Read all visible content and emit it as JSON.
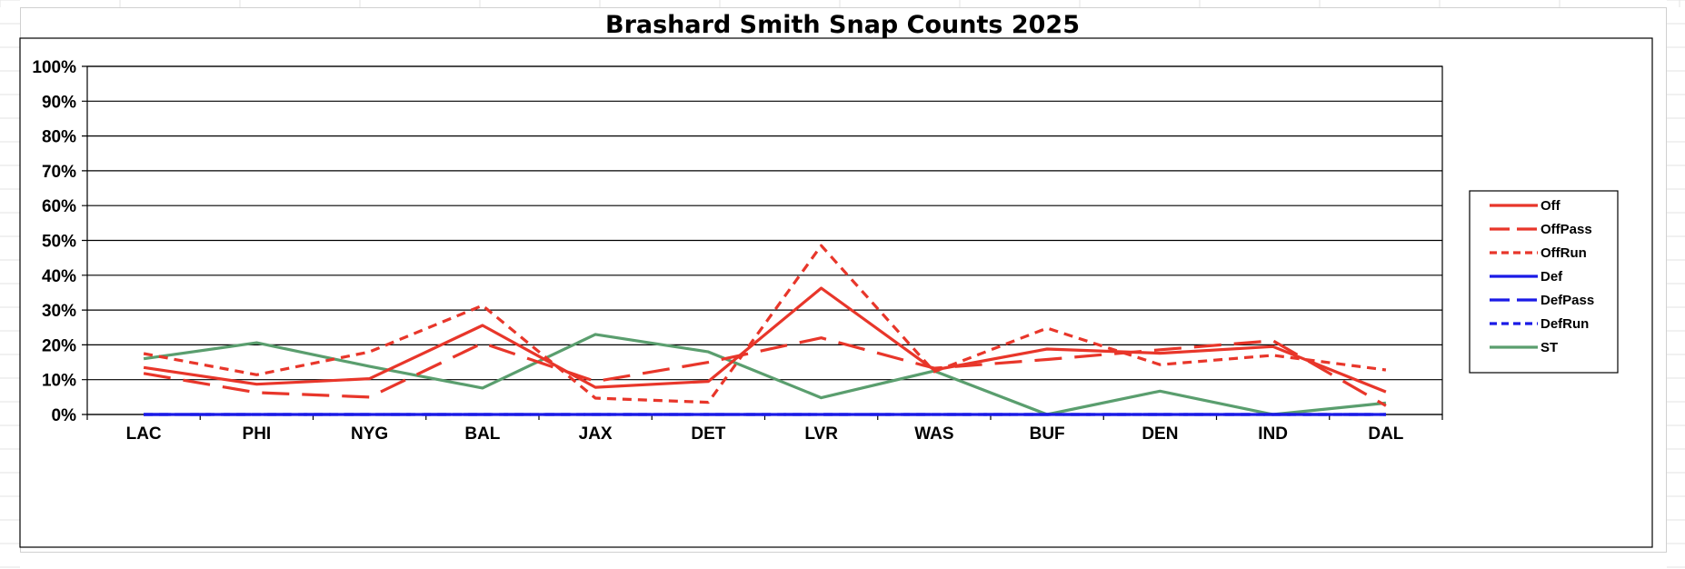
{
  "chart_data": {
    "type": "line",
    "title": "Brashard Smith Snap Counts 2025",
    "xlabel": "",
    "ylabel": "",
    "ylim": [
      0,
      100
    ],
    "y_tick_labels": [
      "0%",
      "10%",
      "20%",
      "30%",
      "40%",
      "50%",
      "60%",
      "70%",
      "80%",
      "90%",
      "100%"
    ],
    "categories": [
      "LAC",
      "PHI",
      "NYG",
      "BAL",
      "JAX",
      "DET",
      "LVR",
      "WAS",
      "BUF",
      "DEN",
      "IND",
      "DAL"
    ],
    "grid": true,
    "legend_position": "right",
    "series": [
      {
        "name": "Off",
        "color": "#e8362a",
        "dash": "solid",
        "values": [
          13.5,
          8.7,
          10.3,
          25.6,
          7.8,
          9.5,
          36.3,
          12.8,
          18.8,
          17.6,
          19.5,
          6.5
        ]
      },
      {
        "name": "OffPass",
        "color": "#e8362a",
        "dash": "long",
        "values": [
          11.8,
          6.3,
          5.0,
          20.5,
          9.5,
          15.0,
          22.0,
          13.3,
          15.8,
          18.6,
          21.2,
          2.5
        ]
      },
      {
        "name": "OffRun",
        "color": "#e8362a",
        "dash": "short",
        "values": [
          17.5,
          11.4,
          18.0,
          31.3,
          4.7,
          3.5,
          48.5,
          12.3,
          24.8,
          14.3,
          17.0,
          12.8
        ]
      },
      {
        "name": "Def",
        "color": "#1a1ae6",
        "dash": "solid",
        "values": [
          0,
          0,
          0,
          0,
          0,
          0,
          0,
          0,
          0,
          0,
          0,
          0
        ]
      },
      {
        "name": "DefPass",
        "color": "#1a1ae6",
        "dash": "long",
        "values": [
          0,
          0,
          0,
          0,
          0,
          0,
          0,
          0,
          0,
          0,
          0,
          0
        ]
      },
      {
        "name": "DefRun",
        "color": "#1a1ae6",
        "dash": "short",
        "values": [
          0,
          0,
          0,
          0,
          0,
          0,
          0,
          0,
          0,
          0,
          0,
          0
        ]
      },
      {
        "name": "ST",
        "color": "#5a9e6e",
        "dash": "solid",
        "values": [
          16.0,
          20.6,
          13.8,
          7.6,
          23.0,
          18.0,
          4.8,
          12.5,
          0,
          6.7,
          0,
          3.3
        ]
      }
    ]
  }
}
